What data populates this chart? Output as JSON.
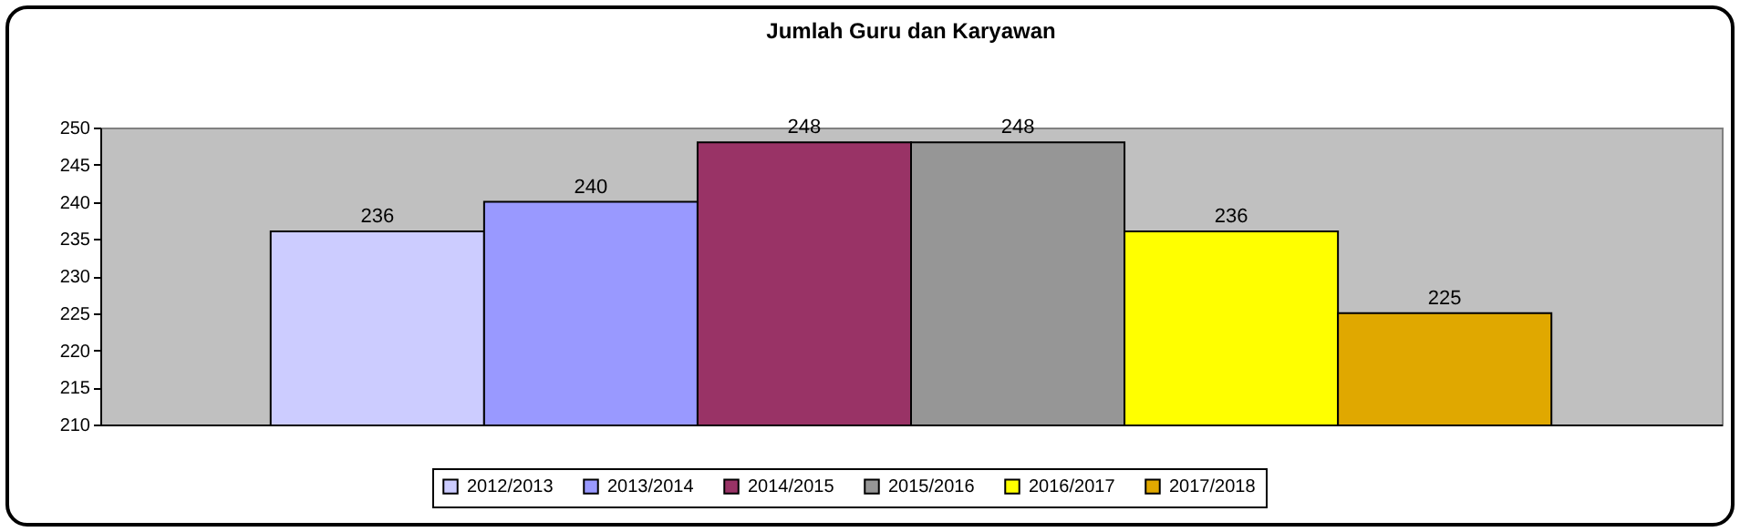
{
  "chart_data": {
    "type": "bar",
    "title": "Jumlah Guru dan Karyawan",
    "categories": [
      null
    ],
    "series": [
      {
        "name": "2012/2013",
        "color": "#ccccff",
        "values": [
          236
        ]
      },
      {
        "name": "2013/2014",
        "color": "#9999ff",
        "values": [
          240
        ]
      },
      {
        "name": "2014/2015",
        "color": "#993366",
        "values": [
          248
        ]
      },
      {
        "name": "2015/2016",
        "color": "#969696",
        "values": [
          248
        ]
      },
      {
        "name": "2016/2017",
        "color": "#ffff00",
        "values": [
          236
        ]
      },
      {
        "name": "2017/2018",
        "color": "#e0a800",
        "values": [
          225
        ]
      }
    ],
    "ylim": [
      210,
      250
    ],
    "yticks": [
      210,
      215,
      220,
      225,
      230,
      235,
      240,
      245,
      250
    ],
    "data_labels": true,
    "legend": "bottom",
    "tick_labels": "y"
  }
}
